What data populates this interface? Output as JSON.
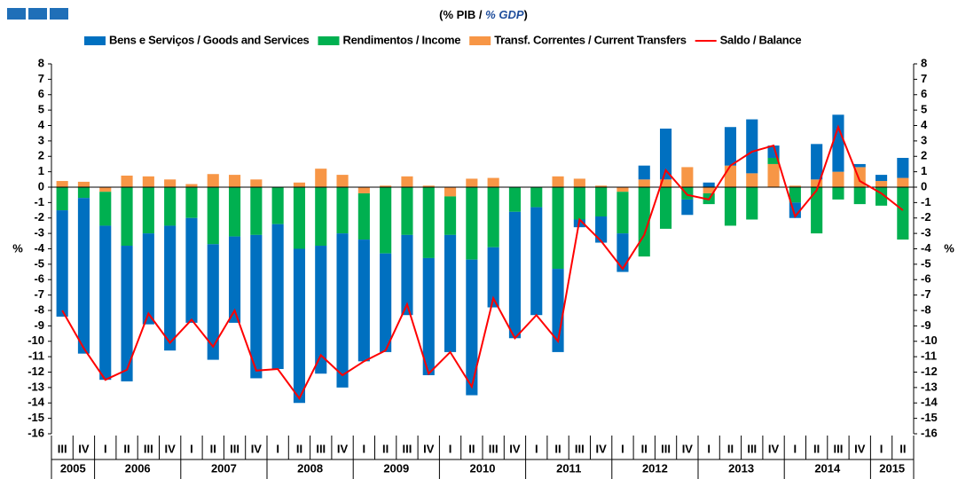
{
  "chart_data": {
    "type": "bar",
    "title_parts": [
      "(% PIB / ",
      "% GDP",
      ")"
    ],
    "ylabel": "%",
    "y2label": "%",
    "categories": [
      "III",
      "IV",
      "I",
      "II",
      "III",
      "IV",
      "I",
      "II",
      "III",
      "IV",
      "I",
      "II",
      "III",
      "IV",
      "I",
      "II",
      "III",
      "IV",
      "I",
      "II",
      "III",
      "IV",
      "I",
      "II",
      "III",
      "IV",
      "I",
      "II",
      "III",
      "IV",
      "I",
      "II",
      "III",
      "IV",
      "I",
      "II",
      "III",
      "IV",
      "I",
      "II"
    ],
    "years": [
      "2005",
      "2006",
      "2007",
      "2008",
      "2009",
      "2010",
      "2011",
      "2012",
      "2013",
      "2014",
      "2015"
    ],
    "series": [
      {
        "name": "Bens e Serviços / Goods and Services",
        "color": "#0070c0",
        "values": [
          -6.9,
          -10.1,
          -10.0,
          -8.8,
          -5.9,
          -8.1,
          -6.8,
          -7.5,
          -5.6,
          -9.3,
          -9.4,
          -10.0,
          -8.3,
          -10.0,
          -7.9,
          -6.4,
          -5.2,
          -7.6,
          -7.6,
          -8.8,
          -3.9,
          -8.2,
          -7.0,
          -5.4,
          -0.5,
          -1.7,
          -2.5,
          0.9,
          3.3,
          -1.0,
          0.3,
          2.5,
          3.5,
          0.8,
          -1.0,
          2.3,
          3.7,
          0.2,
          0.4,
          1.3
        ]
      },
      {
        "name": "Rendimentos / Income",
        "color": "#00b050",
        "values": [
          -1.5,
          -0.7,
          -2.2,
          -3.8,
          -3.0,
          -2.5,
          -2.0,
          -3.7,
          -3.2,
          -3.1,
          -2.4,
          -4.0,
          -3.8,
          -3.0,
          -3.0,
          -4.3,
          -3.1,
          -4.6,
          -2.5,
          -4.7,
          -3.9,
          -1.6,
          -1.3,
          -5.3,
          -2.1,
          -1.9,
          -2.7,
          -4.5,
          -2.7,
          -0.8,
          -0.7,
          -2.5,
          -2.1,
          0.4,
          -1.0,
          -3.0,
          -0.8,
          -1.1,
          -1.2,
          -3.4
        ]
      },
      {
        "name": "Transf. Correntes / Current Transfers",
        "color": "#f79646",
        "values": [
          0.4,
          0.35,
          -0.3,
          0.75,
          0.7,
          0.5,
          0.2,
          0.85,
          0.8,
          0.5,
          0,
          0.3,
          1.2,
          0.8,
          -0.4,
          0.1,
          0.7,
          0.1,
          -0.6,
          0.55,
          0.6,
          0,
          0,
          0.7,
          0.55,
          0.1,
          -0.3,
          0.5,
          0.5,
          1.3,
          -0.4,
          1.4,
          0.9,
          1.5,
          0.1,
          0.5,
          1.0,
          1.3,
          0.4,
          0.6
        ]
      },
      {
        "name": "Saldo / Balance",
        "color": "#ff0000",
        "kind": "line",
        "values": [
          -8.0,
          -10.45,
          -12.5,
          -11.85,
          -8.2,
          -10.1,
          -8.6,
          -10.35,
          -8.0,
          -11.9,
          -11.8,
          -13.7,
          -10.9,
          -12.2,
          -11.3,
          -10.6,
          -7.6,
          -12.1,
          -10.7,
          -12.95,
          -7.2,
          -9.8,
          -8.3,
          -10.0,
          -2.1,
          -3.5,
          -5.3,
          -3.1,
          1.1,
          -0.5,
          -0.8,
          1.4,
          2.3,
          2.7,
          -1.9,
          -0.2,
          3.9,
          0.4,
          -0.4,
          -1.5
        ]
      }
    ],
    "ylim": [
      -16,
      8
    ],
    "yticks": [
      -16,
      -15,
      -14,
      -13,
      -12,
      -11,
      -10,
      -9,
      -8,
      -7,
      -6,
      -5,
      -4,
      -3,
      -2,
      -1,
      0,
      1,
      2,
      3,
      4,
      5,
      6,
      7,
      8
    ],
    "y2lim": [
      -16,
      8
    ],
    "y2ticks": [
      -16,
      -15,
      -14,
      -13,
      -12,
      -11,
      -10,
      -9,
      -8,
      -7,
      -6,
      -5,
      -4,
      -3,
      -2,
      -1,
      0,
      1,
      2,
      3,
      4,
      5,
      6,
      7,
      8
    ],
    "grid": false
  }
}
